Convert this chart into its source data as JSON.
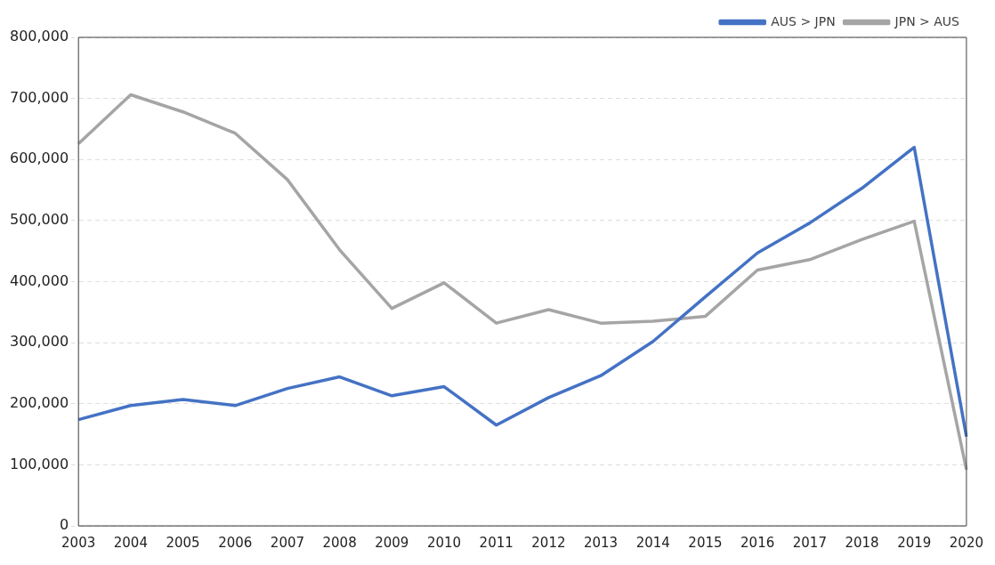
{
  "chart_data": {
    "type": "line",
    "categories": [
      "2003",
      "2004",
      "2005",
      "2006",
      "2007",
      "2008",
      "2009",
      "2010",
      "2011",
      "2012",
      "2013",
      "2014",
      "2015",
      "2016",
      "2017",
      "2018",
      "2019",
      "2020"
    ],
    "series": [
      {
        "name": "AUS > JPN",
        "color": "#4472c4",
        "values": [
          174000,
          197000,
          207000,
          197000,
          225000,
          244000,
          213000,
          228000,
          165000,
          210000,
          246000,
          302000,
          375000,
          447000,
          496000,
          553000,
          620000,
          146000
        ]
      },
      {
        "name": "JPN > AUS",
        "color": "#a5a5a5",
        "values": [
          626000,
          706000,
          678000,
          643000,
          567000,
          452000,
          356000,
          398000,
          332000,
          354000,
          332000,
          335000,
          343000,
          419000,
          436000,
          469000,
          499000,
          92000
        ]
      }
    ],
    "ylim": [
      0,
      800000
    ],
    "yticks": [
      {
        "value": 0,
        "label": "0"
      },
      {
        "value": 100000,
        "label": "100,000"
      },
      {
        "value": 200000,
        "label": "200,000"
      },
      {
        "value": 300000,
        "label": "300,000"
      },
      {
        "value": 400000,
        "label": "400,000"
      },
      {
        "value": 500000,
        "label": "500,000"
      },
      {
        "value": 600000,
        "label": "600,000"
      },
      {
        "value": 700000,
        "label": "700,000"
      },
      {
        "value": 800000,
        "label": "800,000"
      }
    ],
    "grid": "y",
    "legend": "top right",
    "marker": "none",
    "line_style": "solid"
  }
}
